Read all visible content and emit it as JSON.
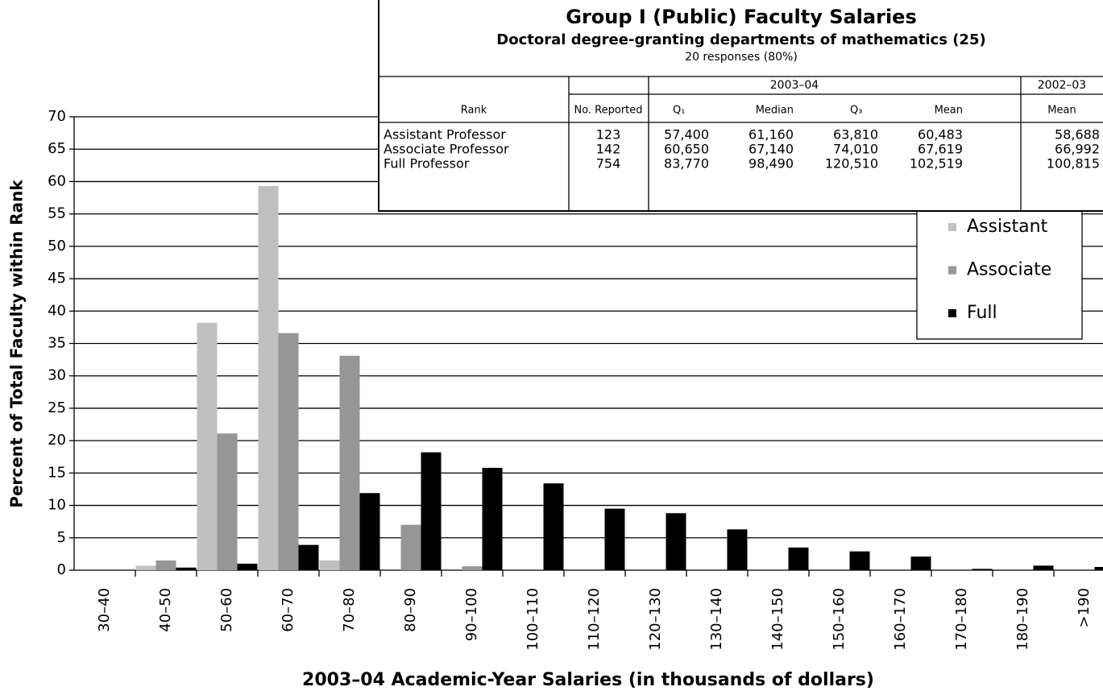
{
  "chart_data": {
    "type": "bar",
    "xlabel": "2003–04 Academic-Year Salaries (in thousands of dollars)",
    "ylabel": "Percent of Total Faculty within Rank",
    "categories": [
      "30–40",
      "40–50",
      "50–60",
      "60–70",
      "70–80",
      "80–90",
      "90–100",
      "100–110",
      "110–120",
      "120–130",
      "130–140",
      "140–150",
      "150–160",
      "160–170",
      "170–180",
      "180–190",
      ">190"
    ],
    "series": [
      {
        "name": "Assistant",
        "color": "#c0c0c0",
        "values": [
          0,
          0.7,
          38.2,
          59.3,
          1.5,
          0,
          0,
          0,
          0,
          0,
          0,
          0,
          0,
          0,
          0,
          0,
          0
        ]
      },
      {
        "name": "Associate",
        "color": "#969696",
        "values": [
          0,
          1.5,
          21.1,
          36.6,
          33.1,
          7.0,
          0.6,
          0,
          0,
          0,
          0,
          0,
          0,
          0,
          0,
          0,
          0
        ]
      },
      {
        "name": "Full",
        "color": "#000000",
        "values": [
          0,
          0.4,
          1.0,
          3.9,
          11.9,
          18.2,
          15.8,
          13.4,
          9.5,
          8.8,
          6.3,
          3.5,
          2.9,
          2.1,
          0.2,
          0.7,
          0.5
        ]
      }
    ],
    "ylim": [
      0,
      70
    ],
    "yticks": [
      0,
      5,
      10,
      15,
      20,
      25,
      30,
      35,
      40,
      45,
      50,
      55,
      60,
      65,
      70
    ],
    "grid": true
  },
  "table": {
    "title": "Group I (Public) Faculty Salaries",
    "subtitle": "Doctoral degree-granting departments of mathematics (25)",
    "responses": "20 responses (80%)",
    "period_header": "2003–04",
    "prior_header": "2002–03",
    "columns": [
      "Rank",
      "No. Reported",
      "Q₁",
      "Median",
      "Q₃",
      "Mean",
      "Mean"
    ],
    "rows": [
      [
        "Assistant Professor",
        "123",
        "57,400",
        "61,160",
        "63,810",
        "60,483",
        "58,688"
      ],
      [
        "Associate Professor",
        "142",
        "60,650",
        "67,140",
        "74,010",
        "67,619",
        "66,992"
      ],
      [
        "Full Professor",
        "754",
        "83,770",
        "98,490",
        "120,510",
        "102,519",
        "100,815"
      ]
    ]
  }
}
